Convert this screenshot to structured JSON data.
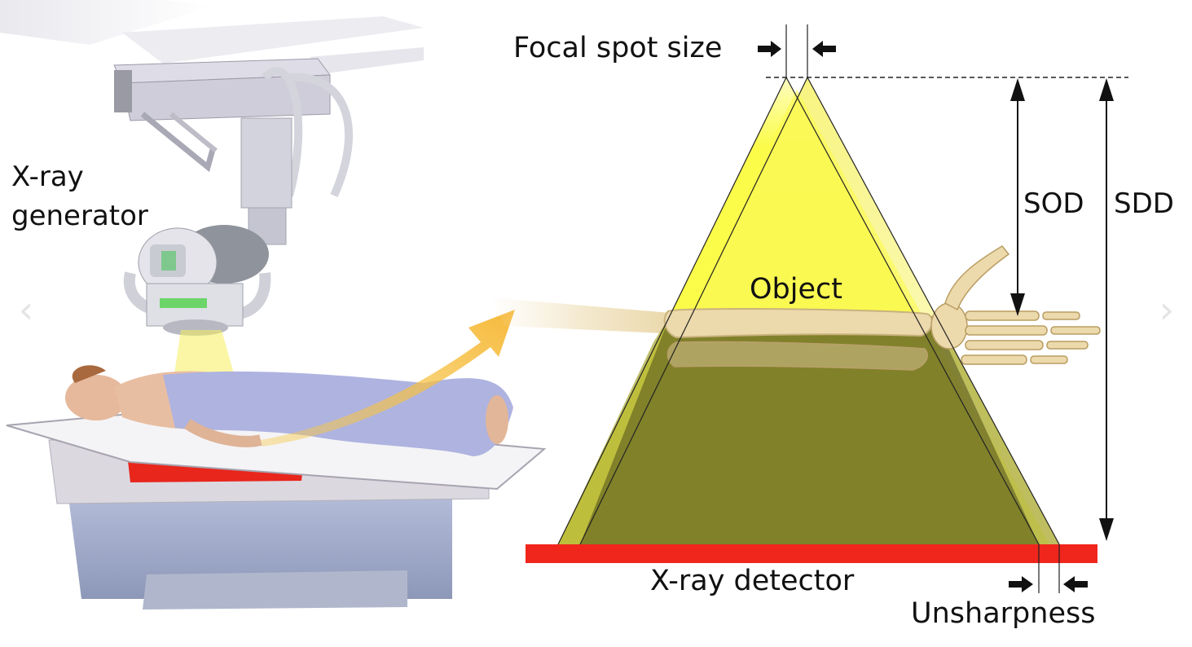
{
  "labels": {
    "xray_generator_line1": "X-ray",
    "xray_generator_line2": "generator",
    "focal_spot_size": "Focal spot size",
    "object": "Object",
    "sod": "SOD",
    "sdd": "SDD",
    "xray_detector": "X-ray detector",
    "unsharpness": "Unsharpness"
  },
  "navigation": {
    "prev_icon": "chevron-left-icon",
    "next_icon": "chevron-right-icon"
  },
  "colors": {
    "beam_yellow": "#fbfb4a",
    "shadow_olive": "#7e7e2f",
    "detector_red": "#f0261c",
    "bone": "#ecd9ac",
    "table_gray": "#d7d3da",
    "blanket_blue": "#aeb3e0"
  }
}
